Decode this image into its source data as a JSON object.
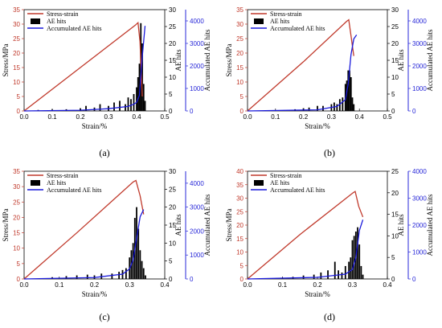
{
  "panel_labels": [
    "(a)",
    "(b)",
    "(c)",
    "(d)"
  ],
  "colors": {
    "stress": "#c0392b",
    "ae": "#000000",
    "acc": "#1a1adb",
    "acc_axis": "#2727d8",
    "stress_axis": "#c0392b"
  },
  "chart_data": [
    {
      "type": "line",
      "panel_label": "(a)",
      "xlabel": "Strain/%",
      "ylabel": "Stress/MPa",
      "y2label": "AE hits",
      "y3label": "Accumulated  AE hits",
      "xlim": [
        0,
        0.5
      ],
      "xticks": [
        0.0,
        0.1,
        0.2,
        0.3,
        0.4,
        0.5
      ],
      "ylim": [
        0,
        35
      ],
      "yticks": [
        0,
        5,
        10,
        15,
        20,
        25,
        30,
        35
      ],
      "y2lim": [
        0,
        30
      ],
      "y2ticks": [
        0,
        5,
        10,
        15,
        20,
        25,
        30
      ],
      "y3lim": [
        0,
        4500
      ],
      "y3ticks": [
        0,
        1000,
        2000,
        3000,
        4000
      ],
      "legend": [
        "Stress-strain",
        "AE hits",
        "Accumulated  AE hits"
      ],
      "legend_position": "top-left",
      "series": [
        {
          "name": "Stress-strain",
          "kind": "line",
          "x": [
            0,
            0.2,
            0.395,
            0.405,
            0.412,
            0.42
          ],
          "y": [
            0,
            15.0,
            29.6,
            30.5,
            24.0,
            5.0
          ]
        },
        {
          "name": "AE hits",
          "kind": "bar",
          "axis": "y2",
          "x": [
            0.05,
            0.1,
            0.15,
            0.2,
            0.22,
            0.25,
            0.27,
            0.3,
            0.32,
            0.34,
            0.36,
            0.37,
            0.38,
            0.39,
            0.4,
            0.405,
            0.41,
            0.415,
            0.42,
            0.425,
            0.43
          ],
          "y": [
            0.3,
            0.4,
            0.5,
            0.8,
            1.5,
            1.0,
            2.0,
            1.5,
            2.5,
            3.0,
            2.0,
            4.0,
            3.5,
            5.0,
            7.0,
            10.0,
            14.0,
            26.0,
            20.0,
            8.0,
            3.0
          ]
        },
        {
          "name": "Accumulated  AE hits",
          "kind": "line",
          "axis": "y3",
          "x": [
            0,
            0.2,
            0.3,
            0.37,
            0.39,
            0.4,
            0.41,
            0.42,
            0.43
          ],
          "y": [
            0,
            30,
            100,
            200,
            300,
            380,
            700,
            2400,
            3780
          ]
        }
      ]
    },
    {
      "type": "line",
      "panel_label": "(b)",
      "xlabel": "Strain/%",
      "ylabel": "Stress/MPa",
      "y2label": "AE hits",
      "y3label": "Accumulated  AE hits",
      "xlim": [
        0,
        0.5
      ],
      "xticks": [
        0.0,
        0.1,
        0.2,
        0.3,
        0.4,
        0.5
      ],
      "ylim": [
        0,
        35
      ],
      "yticks": [
        0,
        5,
        10,
        15,
        20,
        25,
        30,
        35
      ],
      "y2lim": [
        0,
        30
      ],
      "y2ticks": [
        0,
        5,
        10,
        15,
        20,
        25,
        30
      ],
      "y3lim": [
        0,
        4500
      ],
      "y3ticks": [
        0,
        1000,
        2000,
        3000,
        4000
      ],
      "legend": [
        "Stress-strain",
        "AE hits",
        "Accumulated  AE hits"
      ],
      "legend_position": "top-left",
      "series": [
        {
          "name": "Stress-strain",
          "kind": "line",
          "x": [
            0,
            0.2,
            0.355,
            0.362,
            0.37,
            0.38
          ],
          "y": [
            0,
            17.0,
            31.0,
            31.5,
            26.0,
            19.0
          ]
        },
        {
          "name": "AE hits",
          "kind": "bar",
          "axis": "y2",
          "x": [
            0.17,
            0.2,
            0.22,
            0.25,
            0.27,
            0.3,
            0.31,
            0.32,
            0.33,
            0.34,
            0.35,
            0.355,
            0.36,
            0.365,
            0.37,
            0.375,
            0.38
          ],
          "y": [
            0.5,
            0.8,
            1.0,
            1.5,
            1.5,
            2.0,
            2.5,
            2.0,
            3.5,
            4.0,
            8.0,
            9.0,
            12.0,
            12.0,
            10.0,
            4.0,
            2.0
          ]
        },
        {
          "name": "Accumulated  AE hits",
          "kind": "line",
          "axis": "y3",
          "x": [
            0,
            0.25,
            0.32,
            0.35,
            0.36,
            0.37,
            0.38,
            0.39
          ],
          "y": [
            0,
            50,
            200,
            500,
            1200,
            2500,
            3200,
            3380
          ]
        }
      ]
    },
    {
      "type": "line",
      "panel_label": "(c)",
      "xlabel": "Strain/%",
      "ylabel": "Stress/MPa",
      "y2label": "AE hits",
      "y3label": "Accumulated  AE hits",
      "xlim": [
        0,
        0.4
      ],
      "xticks": [
        0.0,
        0.1,
        0.2,
        0.3,
        0.4
      ],
      "ylim": [
        0,
        35
      ],
      "yticks": [
        0,
        5,
        10,
        15,
        20,
        25,
        30,
        35
      ],
      "y2lim": [
        0,
        30
      ],
      "y2ticks": [
        0,
        5,
        10,
        15,
        20,
        25,
        30
      ],
      "y3lim": [
        0,
        4500
      ],
      "y3ticks": [
        0,
        1000,
        2000,
        3000,
        4000
      ],
      "legend": [
        "Stress-strain",
        "AE hits",
        "Accumulated  AE hits"
      ],
      "legend_position": "top-left",
      "series": [
        {
          "name": "Stress-strain",
          "kind": "line",
          "x": [
            0,
            0.15,
            0.31,
            0.318,
            0.33,
            0.34
          ],
          "y": [
            0,
            15.0,
            31.5,
            32.0,
            27.0,
            21.0
          ]
        },
        {
          "name": "AE hits",
          "kind": "bar",
          "axis": "y2",
          "x": [
            0.08,
            0.12,
            0.15,
            0.18,
            0.2,
            0.22,
            0.25,
            0.27,
            0.28,
            0.29,
            0.3,
            0.305,
            0.31,
            0.315,
            0.32,
            0.325,
            0.33,
            0.335,
            0.34,
            0.345
          ],
          "y": [
            0.5,
            0.8,
            1.0,
            1.2,
            1.0,
            1.5,
            1.5,
            2.0,
            2.5,
            3.0,
            6.0,
            8.0,
            10.0,
            17.0,
            20.0,
            14.0,
            8.0,
            5.0,
            3.0,
            1.0
          ]
        },
        {
          "name": "Accumulated  AE hits",
          "kind": "line",
          "axis": "y3",
          "x": [
            0,
            0.2,
            0.28,
            0.3,
            0.31,
            0.32,
            0.33,
            0.34
          ],
          "y": [
            0,
            60,
            200,
            420,
            800,
            1700,
            2600,
            2900
          ]
        }
      ]
    },
    {
      "type": "line",
      "panel_label": "(d)",
      "xlabel": "Strain/%",
      "ylabel": "Stress/MPa",
      "y2label": "AE hits",
      "y3label": "Accumulated  AE hits",
      "xlim": [
        0,
        0.4
      ],
      "xticks": [
        0.0,
        0.1,
        0.2,
        0.3,
        0.4
      ],
      "ylim": [
        0,
        40
      ],
      "yticks": [
        0,
        5,
        10,
        15,
        20,
        25,
        30,
        35,
        40
      ],
      "y2lim": [
        0,
        25
      ],
      "y2ticks": [
        0,
        5,
        10,
        15,
        20,
        25
      ],
      "y3lim": [
        0,
        4000
      ],
      "y3ticks": [
        0,
        1000,
        2000,
        3000,
        4000
      ],
      "legend": [
        "Stress-strain",
        "AE hits",
        "Accumulated  AE hits"
      ],
      "legend_position": "top-left",
      "series": [
        {
          "name": "Stress-strain",
          "kind": "line",
          "x": [
            0,
            0.15,
            0.302,
            0.308,
            0.318,
            0.33
          ],
          "y": [
            0,
            16.5,
            32.0,
            32.5,
            27.0,
            23.0
          ]
        },
        {
          "name": "AE hits",
          "kind": "bar",
          "axis": "y2",
          "x": [
            0.1,
            0.13,
            0.16,
            0.19,
            0.21,
            0.23,
            0.25,
            0.26,
            0.27,
            0.28,
            0.29,
            0.295,
            0.3,
            0.305,
            0.31,
            0.315,
            0.32,
            0.325,
            0.33
          ],
          "y": [
            0.3,
            0.5,
            0.8,
            1.0,
            1.5,
            2.0,
            4.0,
            2.0,
            1.5,
            3.0,
            4.0,
            5.0,
            9.0,
            10.0,
            11.0,
            12.0,
            8.0,
            3.0,
            1.0
          ]
        },
        {
          "name": "Accumulated  AE hits",
          "kind": "line",
          "axis": "y3",
          "x": [
            0,
            0.2,
            0.28,
            0.3,
            0.31,
            0.32,
            0.33
          ],
          "y": [
            0,
            60,
            180,
            350,
            800,
            1800,
            2200
          ]
        }
      ]
    }
  ]
}
